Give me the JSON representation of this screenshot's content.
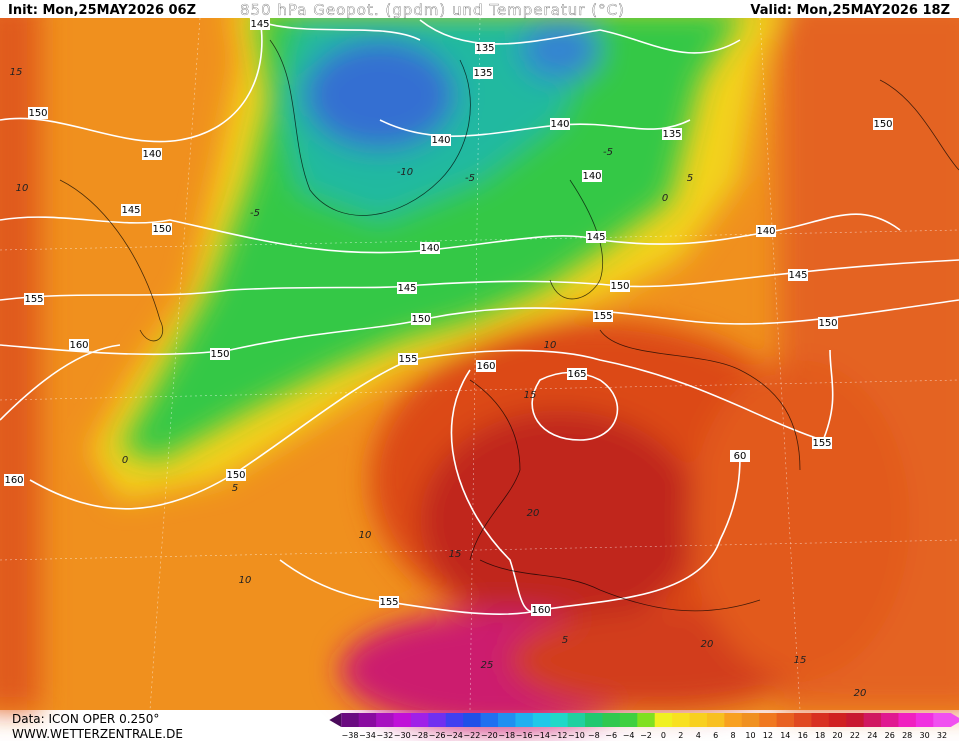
{
  "header": {
    "init": "Init: Mon,25MAY2026 06Z",
    "title": "850 hPa Geopot. (gpdm) und Temperatur (°C)",
    "valid": "Valid: Mon,25MAY2026 18Z"
  },
  "map": {
    "geopotential_labels": [
      "145",
      "135",
      "135",
      "150",
      "140",
      "140",
      "140",
      "135",
      "140",
      "145",
      "150",
      "145",
      "140",
      "140",
      "155",
      "145",
      "150",
      "145",
      "150",
      "155",
      "150",
      "160",
      "150",
      "155",
      "160",
      "165",
      "150",
      "60",
      "155",
      "150",
      "160",
      "155",
      "160"
    ],
    "isotherm_labels": [
      "15",
      "10",
      "-10",
      "-5",
      "-5",
      "0",
      "5",
      "10",
      "15",
      "10",
      "5",
      "-5",
      "0",
      "5",
      "10",
      "15",
      "20",
      "20",
      "25",
      "20",
      "15"
    ]
  },
  "colorbar": {
    "labels": [
      "−38",
      "−34",
      "−32",
      "−30",
      "−28",
      "−26",
      "−24",
      "−22",
      "−20",
      "−18",
      "−16",
      "−14",
      "−12",
      "−10",
      "−8",
      "−6",
      "−4",
      "−2",
      "0",
      "2",
      "4",
      "6",
      "8",
      "10",
      "12",
      "14",
      "16",
      "18",
      "20",
      "22",
      "24",
      "26",
      "28",
      "30",
      "32"
    ]
  },
  "footer": {
    "data": "Data: ICON OPER 0.250°",
    "site": "WWW.WETTERZENTRALE.DE"
  }
}
